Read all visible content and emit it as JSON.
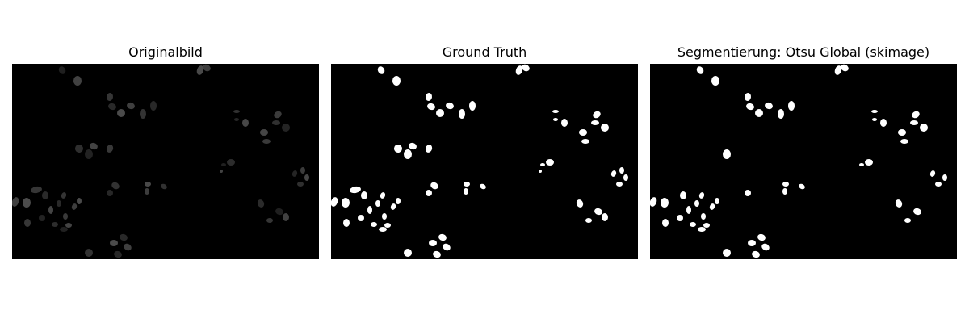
{
  "panels": [
    {
      "title": "Originalbild"
    },
    {
      "title": "Ground Truth"
    },
    {
      "title": "Segmentierung: Otsu Global (skimage)"
    }
  ],
  "colors": {
    "background": "#000000",
    "mask_fill": "#ffffff",
    "cell_gray": "#5a5a5a"
  }
}
